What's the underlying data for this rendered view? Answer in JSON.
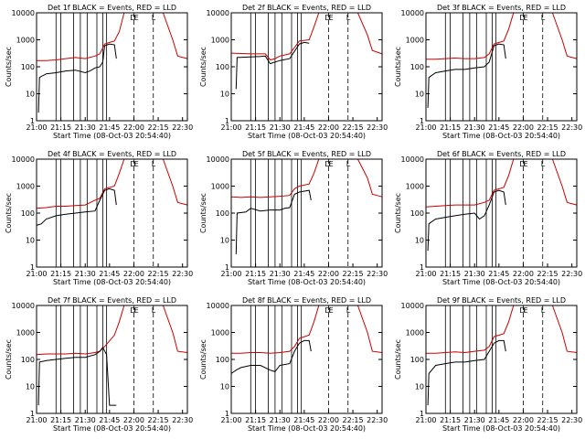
{
  "chart_data": {
    "type": "line",
    "y_scale": "log",
    "ylim": [
      1,
      10000
    ],
    "y_ticks": [
      1,
      10,
      100,
      1000,
      10000
    ],
    "y_tick_labels": [
      "1",
      "10",
      "100",
      "1000",
      "10000"
    ],
    "xlim": [
      21.0,
      22.55
    ],
    "x_ticks": [
      21.0,
      21.25,
      21.5,
      21.75,
      22.0,
      22.25,
      22.5
    ],
    "x_tick_labels": [
      "21:00",
      "21:15",
      "21:30",
      "21:45",
      "22:00",
      "22:15",
      "22:30"
    ],
    "ylabel": "Counts/sec",
    "xlabel": "Start Time (08-Oct-03 20:54:40)",
    "legend_text": "BLACK = Events, RED = LLD",
    "series_colors": {
      "events": "#000000",
      "lld": "#cc0000"
    },
    "event_lines": [
      21.2,
      21.25,
      21.38,
      21.45,
      21.52,
      21.62,
      21.68,
      21.72
    ],
    "marker_lines": [
      22.0,
      22.2
    ],
    "markers": [
      "D",
      "E",
      "L"
    ],
    "panels": [
      {
        "title": "Det 1f",
        "events": [
          [
            21.02,
            2
          ],
          [
            21.03,
            40
          ],
          [
            21.1,
            55
          ],
          [
            21.2,
            60
          ],
          [
            21.3,
            70
          ],
          [
            21.4,
            75
          ],
          [
            21.5,
            60
          ],
          [
            21.55,
            70
          ],
          [
            21.6,
            90
          ],
          [
            21.65,
            100
          ],
          [
            21.68,
            150
          ],
          [
            21.7,
            600
          ],
          [
            21.75,
            700
          ],
          [
            21.8,
            650
          ],
          [
            21.82,
            200
          ]
        ],
        "lld": [
          [
            21.0,
            170
          ],
          [
            21.1,
            170
          ],
          [
            21.2,
            180
          ],
          [
            21.3,
            200
          ],
          [
            21.4,
            220
          ],
          [
            21.5,
            200
          ],
          [
            21.6,
            250
          ],
          [
            21.65,
            300
          ],
          [
            21.7,
            700
          ],
          [
            21.75,
            800
          ],
          [
            21.8,
            900
          ],
          [
            21.85,
            2000
          ],
          [
            21.9,
            10000
          ],
          [
            22.3,
            10000
          ],
          [
            22.4,
            1000
          ],
          [
            22.45,
            250
          ],
          [
            22.55,
            200
          ]
        ]
      },
      {
        "title": "Det 2f",
        "events": [
          [
            21.05,
            15
          ],
          [
            21.06,
            220
          ],
          [
            21.2,
            230
          ],
          [
            21.3,
            240
          ],
          [
            21.35,
            250
          ],
          [
            21.4,
            130
          ],
          [
            21.45,
            150
          ],
          [
            21.5,
            170
          ],
          [
            21.6,
            200
          ],
          [
            21.7,
            700
          ],
          [
            21.75,
            800
          ],
          [
            21.8,
            750
          ]
        ],
        "lld": [
          [
            21.0,
            320
          ],
          [
            21.1,
            310
          ],
          [
            21.2,
            300
          ],
          [
            21.3,
            300
          ],
          [
            21.35,
            300
          ],
          [
            21.4,
            180
          ],
          [
            21.45,
            200
          ],
          [
            21.5,
            250
          ],
          [
            21.6,
            300
          ],
          [
            21.7,
            900
          ],
          [
            21.8,
            1000
          ],
          [
            21.85,
            3000
          ],
          [
            21.9,
            10000
          ],
          [
            22.3,
            10000
          ],
          [
            22.4,
            1500
          ],
          [
            22.45,
            400
          ],
          [
            22.55,
            300
          ]
        ]
      },
      {
        "title": "Det 3f",
        "events": [
          [
            21.02,
            3
          ],
          [
            21.03,
            40
          ],
          [
            21.1,
            60
          ],
          [
            21.2,
            70
          ],
          [
            21.3,
            80
          ],
          [
            21.4,
            80
          ],
          [
            21.5,
            90
          ],
          [
            21.6,
            100
          ],
          [
            21.65,
            150
          ],
          [
            21.7,
            600
          ],
          [
            21.75,
            700
          ],
          [
            21.8,
            650
          ],
          [
            21.82,
            200
          ]
        ],
        "lld": [
          [
            21.0,
            190
          ],
          [
            21.1,
            190
          ],
          [
            21.2,
            200
          ],
          [
            21.3,
            210
          ],
          [
            21.4,
            200
          ],
          [
            21.5,
            200
          ],
          [
            21.6,
            220
          ],
          [
            21.65,
            300
          ],
          [
            21.7,
            700
          ],
          [
            21.8,
            900
          ],
          [
            21.85,
            2500
          ],
          [
            21.9,
            10000
          ],
          [
            22.3,
            10000
          ],
          [
            22.4,
            1000
          ],
          [
            22.45,
            250
          ],
          [
            22.55,
            200
          ]
        ]
      },
      {
        "title": "Det 4f",
        "events": [
          [
            21.0,
            35
          ],
          [
            21.05,
            40
          ],
          [
            21.1,
            60
          ],
          [
            21.2,
            80
          ],
          [
            21.3,
            90
          ],
          [
            21.4,
            100
          ],
          [
            21.5,
            110
          ],
          [
            21.6,
            120
          ],
          [
            21.65,
            300
          ],
          [
            21.7,
            700
          ],
          [
            21.75,
            800
          ],
          [
            21.8,
            700
          ],
          [
            21.82,
            200
          ]
        ],
        "lld": [
          [
            21.0,
            150
          ],
          [
            21.1,
            160
          ],
          [
            21.2,
            180
          ],
          [
            21.3,
            180
          ],
          [
            21.4,
            190
          ],
          [
            21.5,
            200
          ],
          [
            21.6,
            300
          ],
          [
            21.65,
            350
          ],
          [
            21.7,
            800
          ],
          [
            21.8,
            1000
          ],
          [
            21.85,
            3000
          ],
          [
            21.9,
            10000
          ],
          [
            22.3,
            10000
          ],
          [
            22.4,
            1000
          ],
          [
            22.45,
            250
          ],
          [
            22.55,
            200
          ]
        ]
      },
      {
        "title": "Det 5f",
        "events": [
          [
            21.05,
            3
          ],
          [
            21.06,
            100
          ],
          [
            21.15,
            110
          ],
          [
            21.2,
            150
          ],
          [
            21.3,
            120
          ],
          [
            21.4,
            130
          ],
          [
            21.5,
            130
          ],
          [
            21.55,
            150
          ],
          [
            21.6,
            160
          ],
          [
            21.65,
            500
          ],
          [
            21.7,
            600
          ],
          [
            21.8,
            700
          ],
          [
            21.82,
            300
          ]
        ],
        "lld": [
          [
            21.0,
            400
          ],
          [
            21.1,
            380
          ],
          [
            21.2,
            400
          ],
          [
            21.3,
            380
          ],
          [
            21.4,
            400
          ],
          [
            21.5,
            420
          ],
          [
            21.6,
            450
          ],
          [
            21.65,
            800
          ],
          [
            21.7,
            1000
          ],
          [
            21.8,
            1200
          ],
          [
            21.85,
            3000
          ],
          [
            21.9,
            10000
          ],
          [
            22.3,
            10000
          ],
          [
            22.4,
            2000
          ],
          [
            22.45,
            500
          ],
          [
            22.55,
            400
          ]
        ]
      },
      {
        "title": "Det 6f",
        "events": [
          [
            21.02,
            4
          ],
          [
            21.03,
            40
          ],
          [
            21.1,
            60
          ],
          [
            21.2,
            70
          ],
          [
            21.3,
            80
          ],
          [
            21.4,
            90
          ],
          [
            21.5,
            100
          ],
          [
            21.55,
            60
          ],
          [
            21.6,
            80
          ],
          [
            21.65,
            200
          ],
          [
            21.7,
            600
          ],
          [
            21.75,
            700
          ],
          [
            21.8,
            600
          ],
          [
            21.82,
            200
          ]
        ],
        "lld": [
          [
            21.0,
            170
          ],
          [
            21.1,
            180
          ],
          [
            21.2,
            190
          ],
          [
            21.3,
            200
          ],
          [
            21.4,
            200
          ],
          [
            21.5,
            200
          ],
          [
            21.6,
            250
          ],
          [
            21.65,
            300
          ],
          [
            21.7,
            700
          ],
          [
            21.8,
            900
          ],
          [
            21.85,
            2500
          ],
          [
            21.9,
            10000
          ],
          [
            22.3,
            10000
          ],
          [
            22.4,
            1000
          ],
          [
            22.45,
            250
          ],
          [
            22.55,
            200
          ]
        ]
      },
      {
        "title": "Det 7f",
        "events": [
          [
            21.02,
            2
          ],
          [
            21.03,
            80
          ],
          [
            21.1,
            90
          ],
          [
            21.2,
            100
          ],
          [
            21.3,
            110
          ],
          [
            21.4,
            120
          ],
          [
            21.5,
            120
          ],
          [
            21.6,
            150
          ],
          [
            21.65,
            200
          ],
          [
            21.68,
            280
          ],
          [
            21.72,
            150
          ],
          [
            21.75,
            2
          ],
          [
            21.82,
            2
          ]
        ],
        "lld": [
          [
            21.0,
            150
          ],
          [
            21.1,
            160
          ],
          [
            21.2,
            160
          ],
          [
            21.3,
            160
          ],
          [
            21.4,
            170
          ],
          [
            21.5,
            160
          ],
          [
            21.6,
            180
          ],
          [
            21.65,
            200
          ],
          [
            21.7,
            300
          ],
          [
            21.8,
            800
          ],
          [
            21.85,
            2500
          ],
          [
            21.9,
            10000
          ],
          [
            22.3,
            10000
          ],
          [
            22.4,
            1000
          ],
          [
            22.45,
            200
          ],
          [
            22.55,
            180
          ]
        ]
      },
      {
        "title": "Det 8f",
        "events": [
          [
            21.0,
            30
          ],
          [
            21.05,
            40
          ],
          [
            21.1,
            50
          ],
          [
            21.2,
            60
          ],
          [
            21.3,
            60
          ],
          [
            21.4,
            40
          ],
          [
            21.45,
            35
          ],
          [
            21.5,
            60
          ],
          [
            21.6,
            70
          ],
          [
            21.65,
            200
          ],
          [
            21.7,
            400
          ],
          [
            21.75,
            500
          ],
          [
            21.8,
            500
          ],
          [
            21.82,
            200
          ]
        ],
        "lld": [
          [
            21.0,
            170
          ],
          [
            21.1,
            170
          ],
          [
            21.2,
            180
          ],
          [
            21.3,
            180
          ],
          [
            21.4,
            170
          ],
          [
            21.5,
            180
          ],
          [
            21.6,
            200
          ],
          [
            21.65,
            300
          ],
          [
            21.7,
            600
          ],
          [
            21.8,
            800
          ],
          [
            21.85,
            2500
          ],
          [
            21.9,
            10000
          ],
          [
            22.3,
            10000
          ],
          [
            22.4,
            1000
          ],
          [
            22.45,
            200
          ],
          [
            22.55,
            180
          ]
        ]
      },
      {
        "title": "Det 9f",
        "events": [
          [
            21.02,
            2
          ],
          [
            21.03,
            30
          ],
          [
            21.1,
            60
          ],
          [
            21.2,
            70
          ],
          [
            21.3,
            80
          ],
          [
            21.4,
            80
          ],
          [
            21.5,
            90
          ],
          [
            21.6,
            100
          ],
          [
            21.65,
            200
          ],
          [
            21.7,
            400
          ],
          [
            21.75,
            500
          ],
          [
            21.8,
            500
          ],
          [
            21.82,
            200
          ]
        ],
        "lld": [
          [
            21.0,
            170
          ],
          [
            21.1,
            170
          ],
          [
            21.2,
            180
          ],
          [
            21.3,
            190
          ],
          [
            21.4,
            180
          ],
          [
            21.5,
            200
          ],
          [
            21.6,
            220
          ],
          [
            21.65,
            300
          ],
          [
            21.7,
            700
          ],
          [
            21.8,
            900
          ],
          [
            21.85,
            2500
          ],
          [
            21.9,
            10000
          ],
          [
            22.3,
            10000
          ],
          [
            22.4,
            1000
          ],
          [
            22.45,
            200
          ],
          [
            22.55,
            180
          ]
        ]
      }
    ]
  }
}
